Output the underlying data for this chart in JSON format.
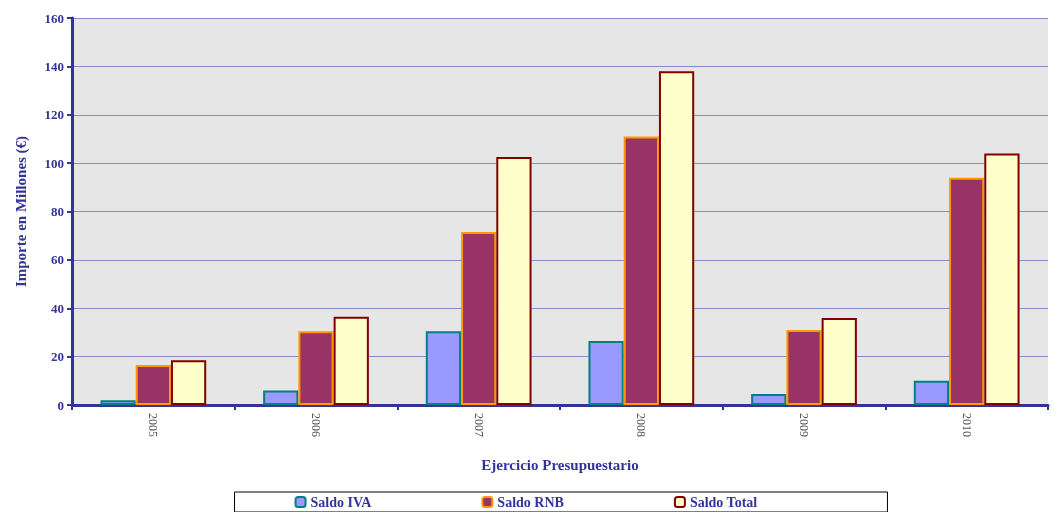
{
  "chart_data": {
    "type": "bar",
    "xlabel": "Ejercicio Presupuestario",
    "ylabel": "Importe en Millones (€)",
    "categories": [
      "2005",
      "2006",
      "2007",
      "2008",
      "2009",
      "2010"
    ],
    "series": [
      {
        "name": "Saldo IVA",
        "color": "#9999ff",
        "values": [
          2,
          6,
          30.5,
          26.5,
          4.5,
          10
        ]
      },
      {
        "name": "Saldo RNB",
        "color": "#993366",
        "values": [
          16.5,
          30.5,
          71.5,
          111,
          31,
          94
        ]
      },
      {
        "name": "Saldo Total",
        "color": "#ffffcc",
        "values": [
          18.5,
          36.5,
          102.5,
          138,
          36,
          104
        ]
      }
    ],
    "ylim": [
      0,
      160
    ],
    "yticks": [
      0,
      20,
      40,
      60,
      80,
      100,
      120,
      140,
      160
    ],
    "grid": "y",
    "legend": "bottom"
  }
}
